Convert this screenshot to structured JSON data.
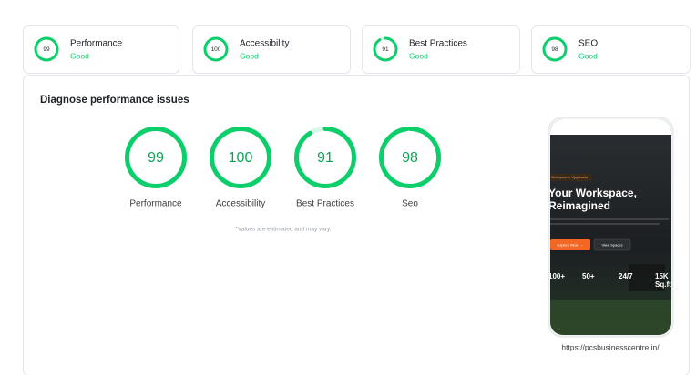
{
  "summary": [
    {
      "score": 99,
      "name": "Performance",
      "status": "Good"
    },
    {
      "score": 100,
      "name": "Accessibility",
      "status": "Good"
    },
    {
      "score": 91,
      "name": "Best Practices",
      "status": "Good"
    },
    {
      "score": 98,
      "name": "SEO",
      "status": "Good"
    }
  ],
  "panel": {
    "title": "Diagnose performance issues",
    "gauges": [
      {
        "score": 99,
        "label": "Performance"
      },
      {
        "score": 100,
        "label": "Accessibility"
      },
      {
        "score": 91,
        "label": "Best Practices"
      },
      {
        "score": 98,
        "label": "Seo"
      }
    ],
    "note": "*Values are estimated and may vary.",
    "preview": {
      "badge": "Workspace in Vijayawada",
      "headline": [
        "Your Workspace,",
        "Reimagined"
      ],
      "primary_button": "Explore More →",
      "secondary_button": "View Spaces",
      "stats": [
        "100+",
        "50+",
        "24/7",
        "15K"
      ],
      "area_unit": "Sq.ft"
    },
    "url": "https://pcsbusinesscentre.in/"
  }
}
